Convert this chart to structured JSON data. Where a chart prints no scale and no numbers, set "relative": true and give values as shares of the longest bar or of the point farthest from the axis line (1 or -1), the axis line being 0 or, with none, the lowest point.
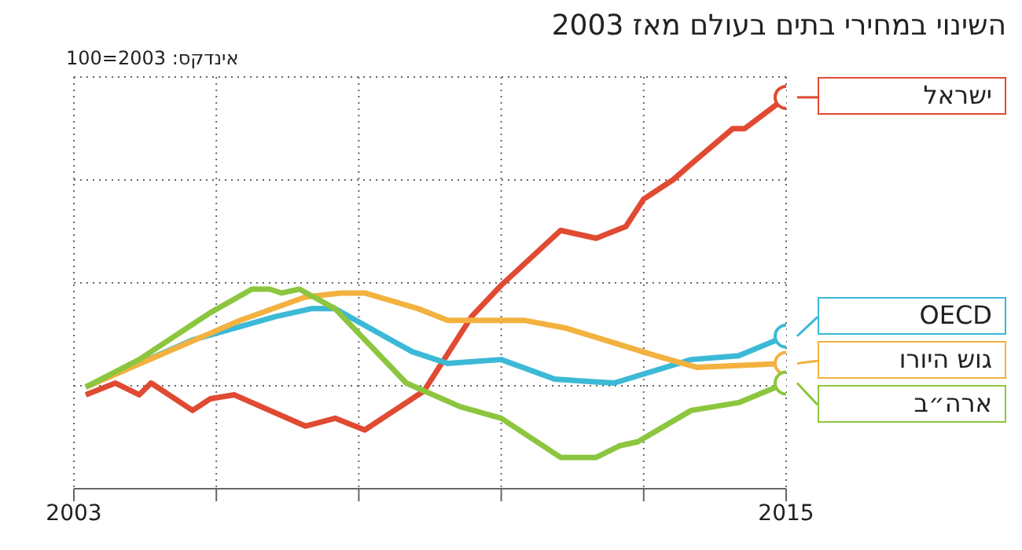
{
  "chart_data": {
    "type": "line",
    "title": "השינוי במחירי בתים בעולם מאז 2003",
    "subtitle": "אינדקס: 2003=100",
    "relative": true,
    "grid": true,
    "legend": false,
    "line_style": "solid",
    "xlim": [
      2003,
      2015
    ],
    "xticks": [
      2003,
      {
        "value": 2005.4,
        "label": null
      },
      {
        "value": 2007.8,
        "label": null
      },
      {
        "value": 2010.2,
        "label": null
      },
      {
        "value": 2012.6,
        "label": null
      },
      2015
    ],
    "series": [
      {
        "name": "ישראל",
        "color": "#e04a32",
        "x": [
          2003.2,
          2003.7,
          2004.1,
          2004.3,
          2005.0,
          2005.3,
          2005.7,
          2006.9,
          2007.4,
          2007.9,
          2008.9,
          2009.7,
          2010.2,
          2011.2,
          2011.8,
          2012.3,
          2012.6,
          2013.1,
          2013.4,
          2014.1,
          2014.3,
          2015
        ],
        "values": [
          0.24,
          0.27,
          0.24,
          0.27,
          0.2,
          0.23,
          0.24,
          0.16,
          0.18,
          0.15,
          0.25,
          0.44,
          0.52,
          0.66,
          0.64,
          0.67,
          0.74,
          0.79,
          0.83,
          0.92,
          0.92,
          1.0
        ]
      },
      {
        "name": "OECD",
        "color": "#3cb9d6",
        "x": [
          2003.2,
          2005.0,
          2006.4,
          2007.0,
          2007.4,
          2008.7,
          2009.3,
          2010.2,
          2011.1,
          2012.1,
          2013.4,
          2014.2,
          2015
        ],
        "values": [
          0.26,
          0.38,
          0.44,
          0.46,
          0.46,
          0.35,
          0.32,
          0.33,
          0.28,
          0.27,
          0.33,
          0.34,
          0.39
        ]
      },
      {
        "name": "גוש היורו",
        "color": "#f3b13f",
        "x": [
          2003.2,
          2005.8,
          2006.9,
          2007.5,
          2007.9,
          2008.8,
          2009.3,
          2010.6,
          2011.3,
          2012.8,
          2013.5,
          2015
        ],
        "values": [
          0.26,
          0.43,
          0.49,
          0.5,
          0.5,
          0.46,
          0.43,
          0.43,
          0.41,
          0.34,
          0.31,
          0.32
        ]
      },
      {
        "name": "ארה״ב",
        "color": "#8cc63f",
        "x": [
          2003.2,
          2004.1,
          2005.3,
          2006.0,
          2006.3,
          2006.5,
          2006.8,
          2007.4,
          2008.6,
          2009.5,
          2010.2,
          2011.2,
          2011.8,
          2012.2,
          2012.5,
          2013.4,
          2014.2,
          2015
        ],
        "values": [
          0.26,
          0.33,
          0.45,
          0.51,
          0.51,
          0.5,
          0.51,
          0.46,
          0.27,
          0.21,
          0.18,
          0.08,
          0.08,
          0.11,
          0.12,
          0.2,
          0.22,
          0.27
        ]
      }
    ]
  }
}
